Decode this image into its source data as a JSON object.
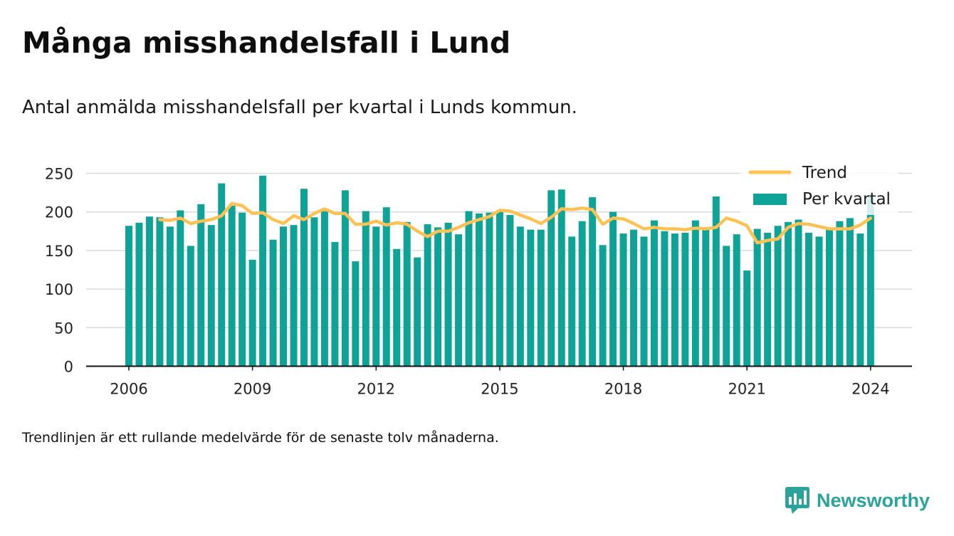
{
  "title": "Många misshandelsfall i Lund",
  "subtitle": "Antal anmälda misshandelsfall per kvartal i Lunds kommun.",
  "note": "Trendlinjen är ett rullande medelvärde för de senaste tolv månaderna.",
  "logo_text": "Newsworthy",
  "colors": {
    "bar": "#0fa398",
    "trend": "#fdc253",
    "logo": "#2aa39b",
    "grid": "#d9d9d9",
    "axis": "#111111"
  },
  "chart_data": {
    "type": "bar",
    "ylim": [
      0,
      250
    ],
    "yticks": [
      "0",
      "50",
      "100",
      "150",
      "200",
      "250"
    ],
    "xticks": [
      "2006",
      "2009",
      "2012",
      "2015",
      "2018",
      "2021",
      "2024"
    ],
    "xtick_quarter_index": [
      0,
      12,
      24,
      36,
      48,
      60,
      72
    ],
    "grid": true,
    "legend_position": "top-right",
    "x_start": "2006 Q1",
    "x_end": "2024 Q1",
    "series": [
      {
        "name": "Per kvartal",
        "type": "bar",
        "values": [
          182,
          186,
          194,
          193,
          181,
          202,
          156,
          210,
          183,
          237,
          208,
          199,
          138,
          247,
          164,
          181,
          183,
          230,
          193,
          201,
          161,
          228,
          136,
          201,
          181,
          206,
          152,
          187,
          141,
          184,
          180,
          186,
          171,
          201,
          198,
          199,
          202,
          196,
          181,
          177,
          177,
          228,
          229,
          168,
          188,
          219,
          157,
          200,
          172,
          177,
          168,
          189,
          175,
          172,
          173,
          189,
          177,
          220,
          156,
          171,
          124,
          178,
          173,
          182,
          187,
          190,
          173,
          168,
          177,
          188,
          192,
          172,
          220
        ]
      },
      {
        "name": "Trend",
        "type": "line",
        "values": [
          null,
          null,
          null,
          190,
          189,
          192,
          185,
          188,
          190,
          195,
          211,
          208,
          198,
          199,
          190,
          185,
          195,
          190,
          198,
          204,
          198,
          198,
          184,
          184,
          188,
          183,
          186,
          184,
          175,
          168,
          175,
          175,
          180,
          186,
          190,
          194,
          202,
          201,
          196,
          191,
          185,
          193,
          204,
          203,
          205,
          203,
          184,
          192,
          191,
          185,
          178,
          180,
          178,
          178,
          177,
          179,
          178,
          180,
          192,
          188,
          182,
          160,
          163,
          165,
          180,
          185,
          184,
          181,
          178,
          178,
          178,
          183,
          192
        ]
      }
    ]
  }
}
